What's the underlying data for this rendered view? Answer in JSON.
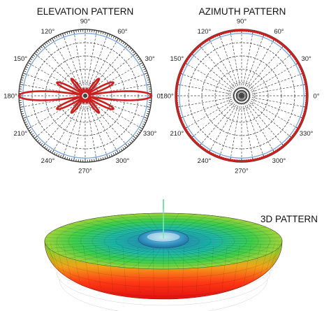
{
  "chart_data": [
    {
      "type": "polar",
      "title": "ELEVATION PATTERN",
      "angle_ticks": [
        "0°",
        "30°",
        "60°",
        "90°",
        "120°",
        "150°",
        "180°",
        "210°",
        "240°",
        "270°",
        "300°",
        "330°"
      ],
      "angle_tick_values": [
        0,
        30,
        60,
        90,
        120,
        150,
        180,
        210,
        240,
        270,
        300,
        330
      ],
      "rlim": [
        0,
        1
      ],
      "grid": true,
      "series": [
        {
          "color": "#cc1f1f",
          "pattern": "multi-lobe",
          "main_lobes_deg": [
            0,
            180
          ],
          "main_lobe_gain": 1.0,
          "side_lobes": [
            {
              "angle_deg": 25,
              "gain": 0.47
            },
            {
              "angle_deg": 51,
              "gain": 0.33
            },
            {
              "angle_deg": 77,
              "gain": 0.11
            },
            {
              "angle_deg": 103,
              "gain": 0.11
            },
            {
              "angle_deg": 129,
              "gain": 0.33
            },
            {
              "angle_deg": 155,
              "gain": 0.47
            }
          ]
        }
      ],
      "reference_circle": {
        "r": 0.94,
        "color": "#7aa6dc"
      }
    },
    {
      "type": "polar",
      "title": "AZIMUTH PATTERN",
      "angle_ticks": [
        "0°",
        "30°",
        "60°",
        "90°",
        "120°",
        "150°",
        "180°",
        "210°",
        "240°",
        "270°",
        "300°",
        "330°"
      ],
      "angle_tick_values": [
        0,
        30,
        60,
        90,
        120,
        150,
        180,
        210,
        240,
        270,
        300,
        330
      ],
      "rlim": [
        0,
        1
      ],
      "grid": true,
      "series": [
        {
          "color": "#cc1f1f",
          "pattern": "omnidirectional",
          "gain": 0.985
        }
      ],
      "reference_circle": {
        "r": 0.94,
        "color": "#7aa6dc"
      }
    },
    {
      "type": "3d-surface",
      "title": "3D PATTERN",
      "shape": "toroid",
      "colormap": [
        "#ff1a1a",
        "#ff7a1a",
        "#e8d21a",
        "#6fd23a",
        "#29b39a",
        "#2a8ac8"
      ]
    }
  ],
  "colors": {
    "grid": "#444444",
    "pattern": "#cc1f1f",
    "reference": "#7aa6dc"
  }
}
